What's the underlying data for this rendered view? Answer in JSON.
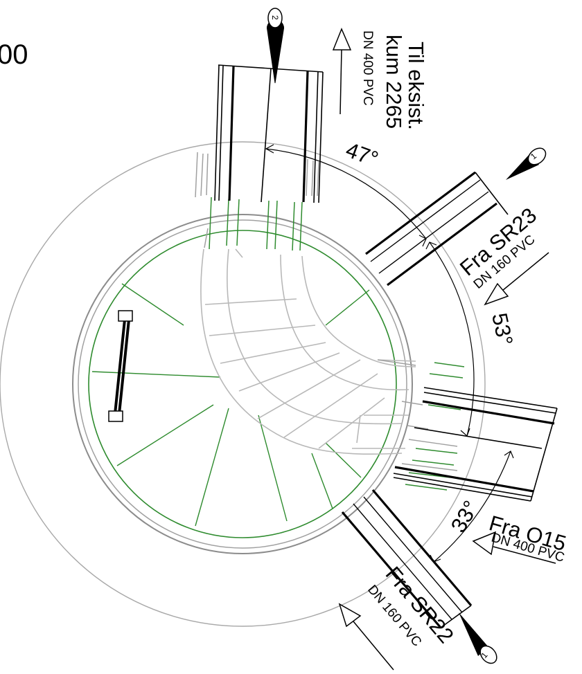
{
  "page": {
    "edge_fragment": "00"
  },
  "pipes": {
    "outlet_2265": {
      "title_line1": "Til eksist.",
      "title_line2": "kum 2265",
      "spec": "DN 400 PVC",
      "marker": "2"
    },
    "inlet_sr23": {
      "title": "Fra SR23",
      "spec": "DN 160 PVC",
      "marker": "1"
    },
    "inlet_o15": {
      "title": "Fra O15",
      "spec": "DN 400 PVC"
    },
    "inlet_sr22": {
      "title": "Fra SR22",
      "spec": "DN 160 PVC",
      "marker": "1"
    }
  },
  "angles": {
    "a1": "47°",
    "a2": "53°",
    "a3": "33°"
  },
  "colors": {
    "outline": "#000000",
    "manhole_grey": "#9a9a9a",
    "channel_grey": "#b8b8b8",
    "benching_green": "#2e8b2e"
  },
  "icons": {
    "flow_marker": "teardrop-marker-icon",
    "flow_arrow": "hollow-arrow-icon",
    "ladder": "ladder-icon"
  }
}
